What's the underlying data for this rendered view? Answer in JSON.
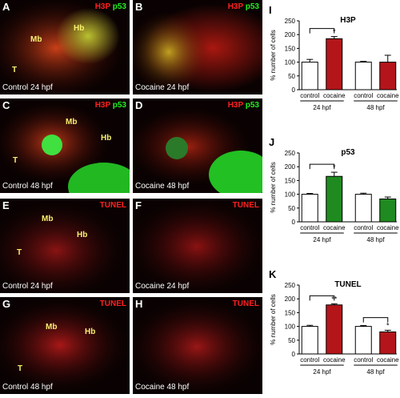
{
  "micrographs": [
    {
      "letter": "A",
      "stain_red": "H3P",
      "stain_green": "p53",
      "caption": "Control 24 hpf",
      "regions": [
        "Mb",
        "Hb",
        "T"
      ]
    },
    {
      "letter": "B",
      "stain_red": "H3P",
      "stain_green": "p53",
      "caption": "Cocaine 24 hpf",
      "regions": []
    },
    {
      "letter": "C",
      "stain_red": "H3P",
      "stain_green": "p53",
      "caption": "Control 48 hpf",
      "regions": [
        "Mb",
        "Hb",
        "T"
      ]
    },
    {
      "letter": "D",
      "stain_red": "H3P",
      "stain_green": "p53",
      "caption": "Cocaine 48 hpf",
      "regions": []
    },
    {
      "letter": "E",
      "stain_red": "TUNEL",
      "stain_green": "",
      "caption": "Control 24 hpf",
      "regions": [
        "Mb",
        "Hb",
        "T"
      ]
    },
    {
      "letter": "F",
      "stain_red": "TUNEL",
      "stain_green": "",
      "caption": "Cocaine 24 hpf",
      "regions": []
    },
    {
      "letter": "G",
      "stain_red": "TUNEL",
      "stain_green": "",
      "caption": "Control 48 hpf",
      "regions": [
        "Mb",
        "Hb",
        "T"
      ]
    },
    {
      "letter": "H",
      "stain_red": "TUNEL",
      "stain_green": "",
      "caption": "Cocaine 48 hpf",
      "regions": []
    }
  ],
  "colors": {
    "control": "#ffffff",
    "h3p_cocaine": "#b3151a",
    "p53_cocaine": "#1f8a1f",
    "tunel_cocaine": "#b3151a"
  },
  "chart_data": [
    {
      "panel": "I",
      "type": "bar",
      "title": "H3P",
      "ylabel": "% number of cells",
      "ylim": [
        0,
        250
      ],
      "yticks": [
        0,
        50,
        100,
        150,
        200,
        250
      ],
      "categories": [
        "control",
        "cocaine",
        "control",
        "cocaine"
      ],
      "groups": [
        "24 hpf",
        "48 hpf"
      ],
      "values": [
        100,
        185,
        100,
        100
      ],
      "errors": [
        10,
        8,
        3,
        25
      ],
      "significance": [
        {
          "between": [
            0,
            1
          ],
          "label": "*"
        }
      ]
    },
    {
      "panel": "J",
      "type": "bar",
      "title": "p53",
      "ylabel": "% number of cells",
      "ylim": [
        0,
        250
      ],
      "yticks": [
        0,
        50,
        100,
        150,
        200,
        250
      ],
      "categories": [
        "control",
        "cocaine",
        "control",
        "cocaine"
      ],
      "groups": [
        "24 hpf",
        "48 hpf"
      ],
      "values": [
        100,
        165,
        100,
        83
      ],
      "errors": [
        3,
        15,
        4,
        7
      ],
      "significance": [
        {
          "between": [
            0,
            1
          ],
          "label": "*"
        }
      ]
    },
    {
      "panel": "K",
      "type": "bar",
      "title": "TUNEL",
      "ylabel": "% number of cells",
      "ylim": [
        0,
        250
      ],
      "yticks": [
        0,
        50,
        100,
        150,
        200,
        250
      ],
      "categories": [
        "control",
        "cocaine",
        "control",
        "cocaine"
      ],
      "groups": [
        "24 hpf",
        "48 hpf"
      ],
      "values": [
        100,
        178,
        100,
        80
      ],
      "errors": [
        4,
        4,
        3,
        6
      ],
      "significance": [
        {
          "between": [
            0,
            1
          ],
          "label": "**"
        },
        {
          "between": [
            2,
            3
          ],
          "label": "*"
        }
      ]
    }
  ]
}
